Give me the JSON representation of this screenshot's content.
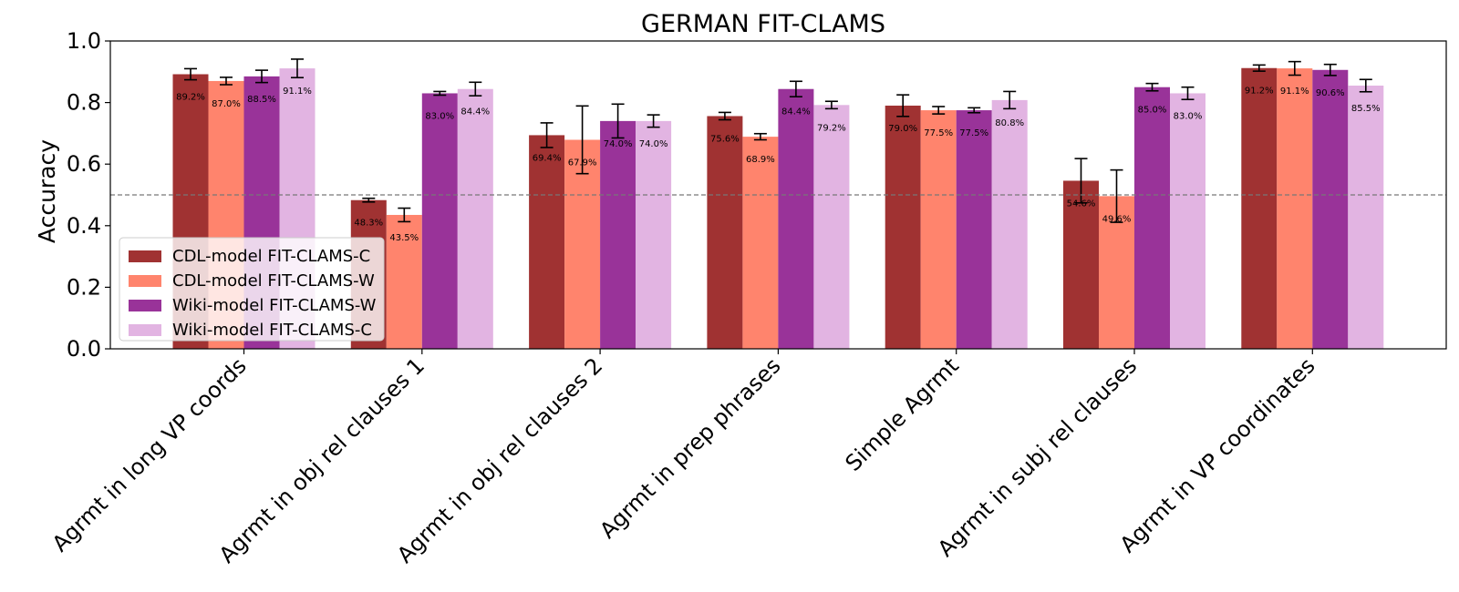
{
  "chart_data": {
    "type": "bar",
    "title": "GERMAN FIT-CLAMS",
    "xlabel": "",
    "ylabel": "Accuracy",
    "ylim": [
      0.0,
      1.0
    ],
    "yticks": [
      "0.0",
      "0.2",
      "0.4",
      "0.6",
      "0.8",
      "1.0"
    ],
    "reference_line": 0.5,
    "legend_position": "lower-left",
    "categories": [
      "Agrmt in long VP coords",
      "Agrmt in obj rel clauses 1",
      "Agrmt in obj rel clauses 2",
      "Agrmt in prep phrases",
      "Simple Agrmt",
      "Agrmt in subj rel clauses",
      "Agrmt in VP coordinates"
    ],
    "series": [
      {
        "name": "CDL-model FIT-CLAMS-C",
        "color": "#A03232",
        "values": [
          0.892,
          0.483,
          0.694,
          0.756,
          0.79,
          0.546,
          0.912
        ],
        "errors": [
          0.018,
          0.006,
          0.04,
          0.012,
          0.035,
          0.072,
          0.01
        ],
        "labels": [
          "89.2%",
          "48.3%",
          "69.4%",
          "75.6%",
          "79.0%",
          "54.6%",
          "91.2%"
        ]
      },
      {
        "name": "CDL-model FIT-CLAMS-W",
        "color": "#FF846D",
        "values": [
          0.87,
          0.435,
          0.679,
          0.689,
          0.775,
          0.496,
          0.911
        ],
        "errors": [
          0.012,
          0.022,
          0.11,
          0.01,
          0.012,
          0.085,
          0.022
        ],
        "labels": [
          "87.0%",
          "43.5%",
          "67.9%",
          "68.9%",
          "77.5%",
          "49.6%",
          "91.1%"
        ]
      },
      {
        "name": "Wiki-model FIT-CLAMS-W",
        "color": "#993399",
        "values": [
          0.885,
          0.83,
          0.74,
          0.844,
          0.775,
          0.85,
          0.906
        ],
        "errors": [
          0.02,
          0.006,
          0.055,
          0.025,
          0.008,
          0.012,
          0.018
        ],
        "labels": [
          "88.5%",
          "83.0%",
          "74.0%",
          "84.4%",
          "77.5%",
          "85.0%",
          "90.6%"
        ]
      },
      {
        "name": "Wiki-model FIT-CLAMS-C",
        "color": "#E2B4E2",
        "values": [
          0.911,
          0.844,
          0.74,
          0.792,
          0.808,
          0.83,
          0.855
        ],
        "errors": [
          0.03,
          0.022,
          0.02,
          0.012,
          0.028,
          0.02,
          0.02
        ],
        "labels": [
          "91.1%",
          "84.4%",
          "74.0%",
          "79.2%",
          "80.8%",
          "83.0%",
          "85.5%"
        ]
      }
    ]
  }
}
